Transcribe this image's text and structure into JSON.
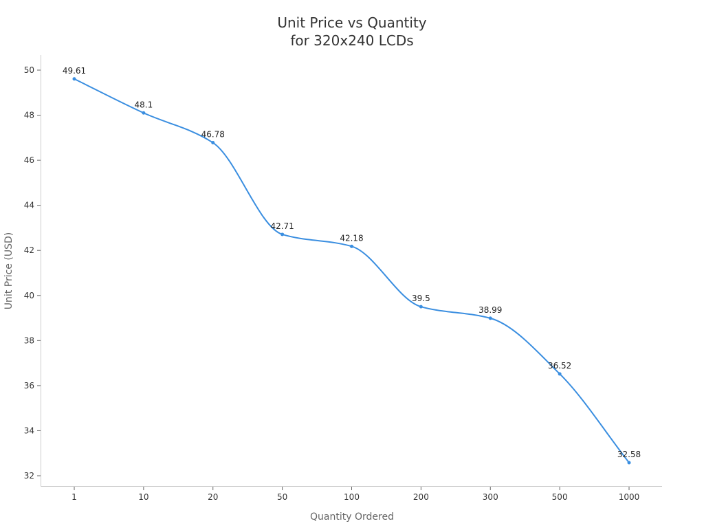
{
  "chart_data": {
    "type": "line",
    "title": "Unit Price vs Quantity\nfor 320x240 LCDs",
    "title_lines": [
      "Unit Price vs Quantity",
      "for 320x240 LCDs"
    ],
    "xlabel": "Quantity Ordered",
    "ylabel": "Unit Price (USD)",
    "categories": [
      "1",
      "10",
      "20",
      "50",
      "100",
      "200",
      "300",
      "500",
      "1000"
    ],
    "series": [
      {
        "name": "Unit Price",
        "color": "#3a8ee0",
        "values": [
          49.61,
          48.1,
          46.78,
          42.71,
          42.18,
          39.5,
          38.99,
          36.52,
          32.58
        ],
        "labels": [
          "49.61",
          "48.1",
          "46.78",
          "42.71",
          "42.18",
          "39.5",
          "38.99",
          "36.52",
          "32.58"
        ]
      }
    ],
    "y_ticks": [
      32,
      34,
      36,
      38,
      40,
      42,
      44,
      46,
      48,
      50
    ],
    "ylim": [
      31.5,
      50.7
    ],
    "grid": false,
    "legend": "none",
    "smooth": true
  }
}
